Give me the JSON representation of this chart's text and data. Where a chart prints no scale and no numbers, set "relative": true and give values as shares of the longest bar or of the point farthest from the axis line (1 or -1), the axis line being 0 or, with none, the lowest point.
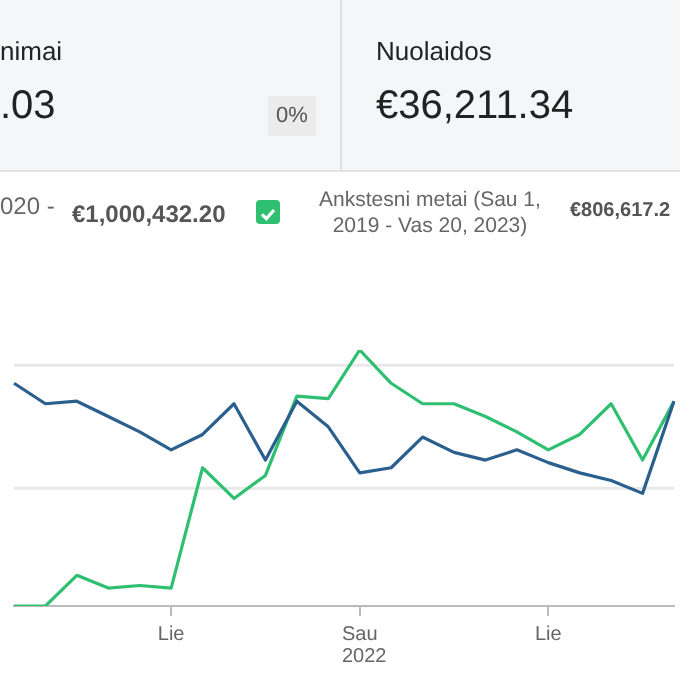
{
  "chart_data": {
    "type": "line",
    "relative": true,
    "ref_lines": [
      {
        "axis": "y",
        "value": 0.46,
        "color": "#e8e8e8"
      },
      {
        "axis": "y",
        "value": 0.94,
        "color": "#e8e8e8"
      }
    ],
    "legend": "top",
    "marker": "none",
    "line_style": "solid",
    "categories": [
      null,
      null,
      null,
      null,
      null,
      "Lie",
      null,
      null,
      null,
      null,
      null,
      "Sau",
      null,
      null,
      null,
      null,
      null,
      "Lie",
      null,
      null,
      null,
      null
    ],
    "series": [
      {
        "color": "#2b5f8e",
        "values": [
          0.87,
          0.79,
          0.8,
          0.74,
          0.68,
          0.61,
          0.67,
          0.79,
          0.57,
          0.8,
          0.7,
          0.52,
          0.54,
          0.66,
          0.6,
          0.57,
          0.61,
          0.56,
          0.52,
          0.49,
          0.44,
          0.8
        ]
      },
      {
        "name": "Ankstesni metai (Sau 1, 2019 - Vas 20, 2023)",
        "color": "#2fbf71",
        "values": [
          0,
          0,
          0.12,
          0.07,
          0.08,
          0.07,
          0.54,
          0.42,
          0.51,
          0.82,
          0.81,
          1,
          0.87,
          0.79,
          0.79,
          0.74,
          0.68,
          0.61,
          0.67,
          0.79,
          0.57,
          0.8
        ]
      }
    ],
    "annotations": [
      "nimai",
      ".03",
      "0%",
      "Nuolaidos",
      "€36,211.34",
      "020 -",
      "€1,000,432.20",
      "€806,617.2",
      "2022"
    ]
  }
}
